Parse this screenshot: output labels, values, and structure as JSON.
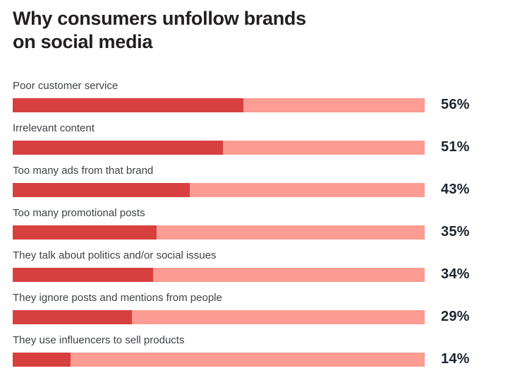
{
  "title": {
    "line1": "Why consumers unfollow brands",
    "line2": "on social media"
  },
  "colors": {
    "bar_fill": "#d84040",
    "bar_track": "#fc9c92",
    "title_text": "#231f20",
    "label_text": "#3f4247",
    "value_text": "#1e2430"
  },
  "chart_data": {
    "type": "bar",
    "orientation": "horizontal",
    "title": "Why consumers unfollow brands on social media",
    "categories": [
      "Poor customer service",
      "Irrelevant content",
      "Too many ads from that brand",
      "Too many promotional posts",
      "They talk about politics and/or social issues",
      "They ignore posts and mentions from people",
      "They use influencers to sell products"
    ],
    "values": [
      56,
      51,
      43,
      35,
      34,
      29,
      14
    ],
    "value_labels": [
      "56%",
      "51%",
      "43%",
      "35%",
      "34%",
      "29%",
      "14%"
    ],
    "unit": "%",
    "xlabel": "",
    "ylabel": "",
    "xlim": [
      0,
      100
    ],
    "grid": false,
    "legend": false,
    "value_label_position": "right-of-bar"
  }
}
